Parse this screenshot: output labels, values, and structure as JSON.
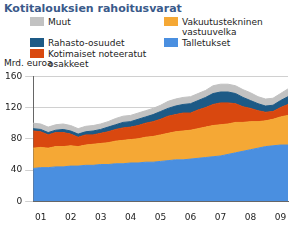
{
  "chart_data": {
    "type": "area",
    "title": "Kotitalouksien rahoitusvarat",
    "y_label": "Mrd. euroa",
    "categories": [
      null,
      "01",
      null,
      null,
      null,
      "02",
      null,
      null,
      null,
      "03",
      null,
      null,
      null,
      "04",
      null,
      null,
      null,
      "05",
      null,
      null,
      null,
      "06",
      null,
      null,
      null,
      "07",
      null,
      null,
      null,
      "08",
      null,
      null,
      null,
      "09",
      null
    ],
    "series": [
      {
        "name": "Talletukset",
        "color": "#4a8fe0",
        "values": [
          42,
          43,
          43,
          44,
          44,
          45,
          45,
          46,
          46,
          47,
          47,
          48,
          48,
          49,
          49,
          50,
          50,
          51,
          52,
          53,
          53,
          54,
          55,
          56,
          57,
          58,
          60,
          62,
          64,
          66,
          68,
          70,
          71,
          72,
          72
        ]
      },
      {
        "name": "Vakuutustekninen vastuuvelka",
        "color": "#f5a835",
        "values": [
          26,
          26,
          25,
          26,
          26,
          26,
          25,
          26,
          27,
          27,
          28,
          29,
          30,
          30,
          31,
          32,
          33,
          34,
          35,
          36,
          37,
          37,
          38,
          39,
          40,
          40,
          39,
          39,
          37,
          36,
          34,
          33,
          34,
          36,
          38
        ]
      },
      {
        "name": "Kotimaiset noteeratut osakkeet",
        "color": "#d9480f",
        "values": [
          22,
          20,
          17,
          18,
          18,
          15,
          12,
          13,
          12,
          13,
          14,
          15,
          16,
          16,
          17,
          18,
          19,
          20,
          22,
          22,
          23,
          22,
          24,
          25,
          27,
          28,
          27,
          24,
          20,
          17,
          14,
          11,
          10,
          12,
          14
        ]
      },
      {
        "name": "Rahasto-osuudet",
        "color": "#1d5a86",
        "values": [
          3,
          3,
          3,
          3,
          4,
          4,
          4,
          4,
          5,
          5,
          6,
          6,
          7,
          7,
          8,
          8,
          9,
          10,
          10,
          11,
          11,
          12,
          12,
          13,
          14,
          14,
          14,
          13,
          12,
          10,
          9,
          8,
          8,
          9,
          10
        ]
      },
      {
        "name": "Muut",
        "color": "#c2c2c2",
        "values": [
          7,
          7,
          7,
          7,
          7,
          7,
          7,
          7,
          7,
          7,
          7,
          8,
          8,
          8,
          8,
          8,
          8,
          8,
          9,
          9,
          9,
          9,
          9,
          9,
          10,
          10,
          10,
          10,
          10,
          10,
          9,
          9,
          9,
          9,
          10
        ]
      }
    ],
    "stacked": true,
    "legend": "top",
    "grid": true,
    "ylim": [
      0,
      160
    ],
    "yticks": [
      0,
      40,
      80,
      120,
      160
    ]
  }
}
